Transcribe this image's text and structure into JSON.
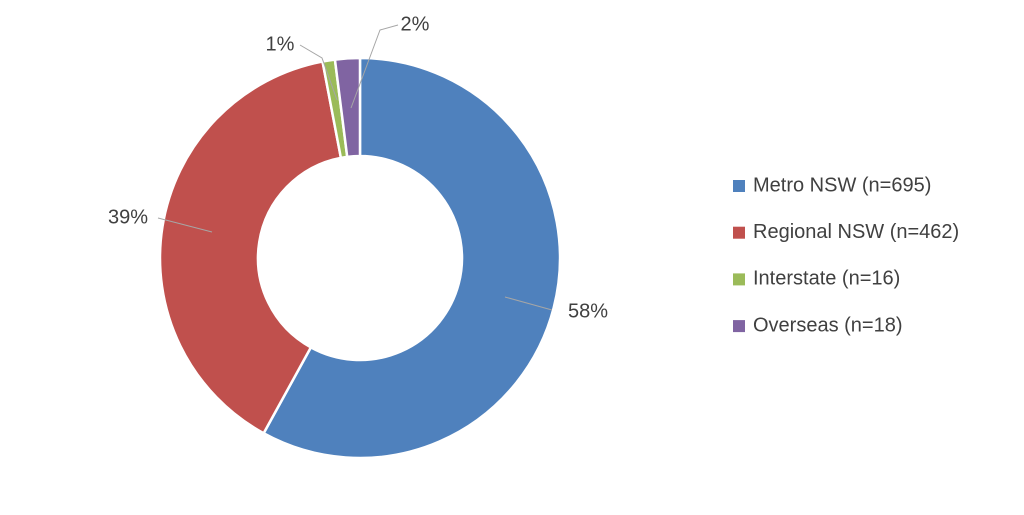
{
  "chart_data": {
    "type": "donut",
    "categories": [
      "Metro NSW (n=695)",
      "Regional NSW (n=462)",
      "Interstate (n=16)",
      "Overseas (n=18)"
    ],
    "values": [
      58,
      39,
      1,
      2
    ],
    "value_labels": [
      "58%",
      "39%",
      "1%",
      "2%"
    ],
    "colors": [
      "#4f81bd",
      "#c0504d",
      "#9bbb59",
      "#8064a2"
    ],
    "legend": "right"
  }
}
